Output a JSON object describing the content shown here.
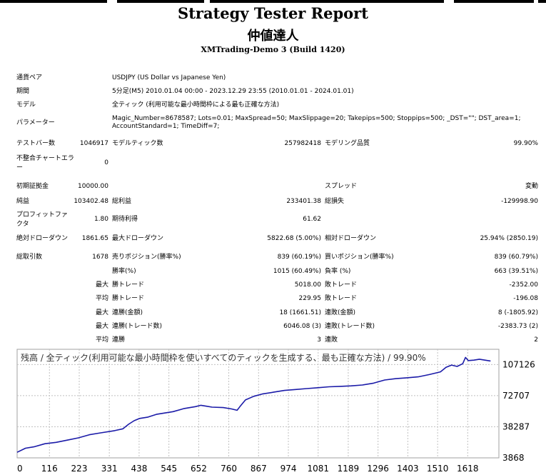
{
  "report": {
    "title": "Strategy Tester Report",
    "ea_name": "仲値達人",
    "server_build": "XMTrading-Demo 3 (Build 1420)"
  },
  "settings": {
    "symbol": {
      "label": "通貨ペア",
      "value": "USDJPY (US Dollar vs Japanese Yen)"
    },
    "period": {
      "label": "期間",
      "value": "5分足(M5) 2010.01.04 00:00 - 2023.12.29 23:55 (2010.01.01 - 2024.01.01)"
    },
    "model": {
      "label": "モデル",
      "value": "全ティック (利用可能な最小時間枠による最も正確な方法)"
    },
    "parameters": {
      "label": "パラメーター",
      "value": "Magic_Number=8678587; Lots=0.01; MaxSpread=50; MaxSlippage=20; Takepips=500; Stoppips=500; _DST=\"\"; DST_area=1; AccountStandard=1; TimeDiff=7;"
    }
  },
  "stats": {
    "bars": {
      "label": "テストバー数",
      "value": "1046917"
    },
    "ticks": {
      "label": "モデルティック数",
      "value": "257982418"
    },
    "quality": {
      "label": "モデリング品質",
      "value": "99.90%"
    },
    "mismatch": {
      "label": "不整合チャートエラー",
      "value": "0"
    },
    "deposit": {
      "label": "初期証拠金",
      "value": "10000.00"
    },
    "spread": {
      "label": "スプレッド",
      "value": "変動"
    },
    "net_profit": {
      "label": "純益",
      "value": "103402.48"
    },
    "gross_profit": {
      "label": "総利益",
      "value": "233401.38"
    },
    "gross_loss": {
      "label": "総損失",
      "value": "-129998.90"
    },
    "profit_factor": {
      "label": "プロフィットファクタ",
      "value": "1.80"
    },
    "expected_payoff": {
      "label": "期待利得",
      "value": "61.62"
    },
    "abs_drawdown": {
      "label": "絶対ドローダウン",
      "value": "1861.65"
    },
    "max_drawdown": {
      "label": "最大ドローダウン",
      "value": "5822.68 (5.00%)"
    },
    "rel_drawdown": {
      "label": "相対ドローダウン",
      "value": "25.94% (2850.19)"
    },
    "total_trades": {
      "label": "総取引数",
      "value": "1678"
    },
    "short_positions": {
      "label": "売りポジション(勝率%)",
      "value": "839 (60.19%)"
    },
    "long_positions": {
      "label": "買いポジション(勝率%)",
      "value": "839 (60.79%)"
    },
    "win_rate": {
      "label": "勝率(%)",
      "value": "1015 (60.49%)"
    },
    "loss_rate": {
      "label": "負率 (%)",
      "value": "663 (39.51%)"
    },
    "largest_win": {
      "prefix": "最大",
      "label": "勝トレード",
      "value": "5018.00"
    },
    "largest_loss": {
      "label": "敗トレード",
      "value": "-2352.00"
    },
    "avg_win": {
      "prefix": "平均",
      "label": "勝トレード",
      "value": "229.95"
    },
    "avg_loss": {
      "label": "敗トレード",
      "value": "-196.08"
    },
    "max_consec_wins": {
      "prefix": "最大",
      "label": "連勝(金額)",
      "value": "18 (1661.51)"
    },
    "max_consec_losses": {
      "label": "連敗(金額)",
      "value": "8 (-1805.92)"
    },
    "max_consec_profit": {
      "prefix": "最大",
      "label": "連勝(トレード数)",
      "value": "6046.08 (3)"
    },
    "max_consec_loss": {
      "label": "連敗(トレード数)",
      "value": "-2383.73 (2)"
    },
    "avg_consec_wins": {
      "prefix": "平均",
      "label": "連勝",
      "value": "3"
    },
    "avg_consec_losses": {
      "label": "連敗",
      "value": "2"
    }
  },
  "chart_data": {
    "type": "line",
    "title": "残高 / 全ティック(利用可能な最小時間枠を使いすべてのティックを生成する、最も正確な方法) / 99.90%",
    "x_ticks": [
      0,
      116,
      223,
      331,
      438,
      545,
      652,
      760,
      867,
      974,
      1081,
      1189,
      1296,
      1403,
      1510,
      1618
    ],
    "y_ticks": [
      107126,
      72707,
      38287,
      3868
    ],
    "xlim": [
      0,
      1730
    ],
    "ylim": [
      3868,
      124000
    ],
    "grid": true,
    "colors": {
      "line": "#1b1ba8",
      "grid": "#c0c0c0",
      "border": "#a0a0a0"
    },
    "series": [
      {
        "x": [
          0,
          30,
          60,
          100,
          140,
          180,
          220,
          260,
          300,
          350,
          380,
          400,
          420,
          440,
          470,
          500,
          530,
          560,
          600,
          640,
          660,
          680,
          700,
          740,
          770,
          790,
          800,
          820,
          850,
          880,
          920,
          960,
          1000,
          1040,
          1080,
          1120,
          1160,
          1200,
          1240,
          1280,
          1320,
          1360,
          1400,
          1440,
          1480,
          1520,
          1540,
          1560,
          1580,
          1600,
          1610,
          1620,
          1640,
          1660,
          1680,
          1700
        ],
        "y": [
          10000,
          14500,
          16000,
          19500,
          21000,
          23500,
          26000,
          29500,
          31500,
          34000,
          36000,
          41000,
          45000,
          47500,
          49000,
          52000,
          53500,
          55000,
          58500,
          60500,
          62000,
          61000,
          60000,
          59500,
          58000,
          56500,
          60500,
          68000,
          72000,
          74500,
          76500,
          78500,
          79500,
          80500,
          81500,
          82500,
          83000,
          83500,
          84500,
          86500,
          90000,
          91500,
          92500,
          93500,
          96000,
          99000,
          104000,
          106500,
          105000,
          108000,
          115000,
          111500,
          112000,
          113000,
          112000,
          111000
        ]
      }
    ]
  }
}
